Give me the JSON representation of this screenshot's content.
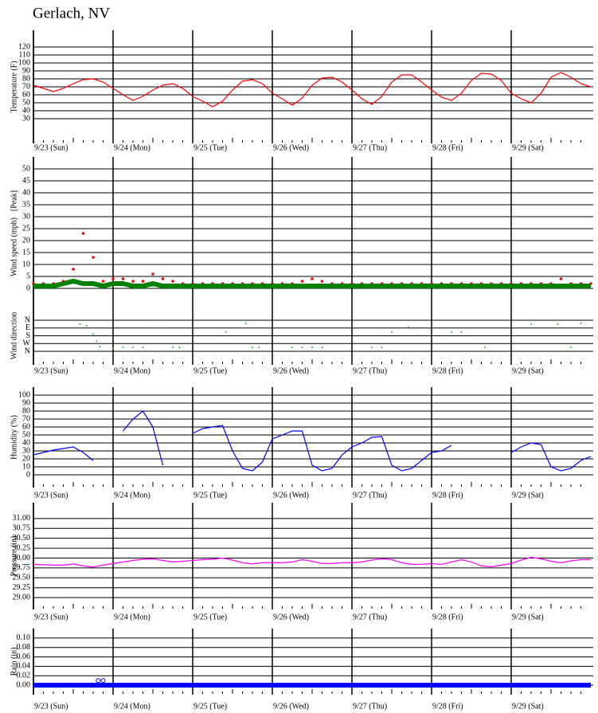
{
  "title": "Gerlach, NV",
  "chart_data": [
    {
      "type": "line",
      "y_label": "Temperature (F)",
      "xlim": [
        0,
        168
      ],
      "ylim": [
        0,
        140
      ],
      "yticks": [
        30,
        40,
        50,
        60,
        70,
        80,
        90,
        100,
        110,
        120
      ],
      "xticks": [
        {
          "value": 0,
          "label": "9/23 (Sun)"
        },
        {
          "value": 24,
          "label": "9/24 (Mon)"
        },
        {
          "value": 48,
          "label": "9/25 (Tue)"
        },
        {
          "value": 72,
          "label": "9/26 (Wed)"
        },
        {
          "value": 96,
          "label": "9/27 (Thu)"
        },
        {
          "value": 120,
          "label": "9/28 (Fri)"
        },
        {
          "value": 144,
          "label": "9/29 (Sat)"
        }
      ],
      "x": [
        0,
        3,
        6,
        9,
        12,
        15,
        18,
        21,
        24,
        27,
        30,
        33,
        36,
        39,
        42,
        45,
        48,
        51,
        54,
        57,
        60,
        63,
        66,
        69,
        72,
        75,
        78,
        81,
        84,
        87,
        90,
        93,
        96,
        99,
        102,
        105,
        108,
        111,
        114,
        117,
        120,
        123,
        126,
        129,
        132,
        135,
        138,
        141,
        144,
        147,
        150,
        153,
        156,
        159,
        162,
        165,
        168
      ],
      "series": [
        {
          "color": "#ff0000",
          "values": [
            72,
            68,
            64,
            68,
            74,
            79,
            80,
            76,
            68,
            60,
            53,
            58,
            66,
            72,
            74,
            68,
            58,
            52,
            45,
            52,
            66,
            77,
            79,
            74,
            62,
            55,
            47,
            56,
            72,
            81,
            82,
            76,
            66,
            55,
            48,
            58,
            76,
            85,
            85,
            76,
            66,
            57,
            53,
            62,
            78,
            87,
            86,
            78,
            62,
            55,
            50,
            62,
            82,
            88,
            82,
            74,
            70
          ]
        }
      ]
    },
    {
      "type": "scatter",
      "y_label": "Wind speed (mph)",
      "xlim": [
        0,
        168
      ],
      "ylim": [
        0,
        55
      ],
      "yticks": [
        0,
        5,
        10,
        15,
        20,
        25,
        30,
        35,
        40,
        45,
        50
      ],
      "xticks": [
        {
          "value": 0,
          "label": "9/23 (Sun)"
        },
        {
          "value": 24,
          "label": "9/24 (Mon)"
        },
        {
          "value": 48,
          "label": "9/25 (Tue)"
        },
        {
          "value": 72,
          "label": "9/26 (Wed)"
        },
        {
          "value": 96,
          "label": "9/27 (Thu)"
        },
        {
          "value": 120,
          "label": "9/28 (Fri)"
        },
        {
          "value": 144,
          "label": "9/29 (Sat)"
        }
      ],
      "x": [
        0,
        3,
        6,
        9,
        12,
        15,
        18,
        21,
        24,
        27,
        30,
        33,
        36,
        39,
        42,
        45,
        48,
        51,
        54,
        57,
        60,
        63,
        66,
        69,
        72,
        75,
        78,
        81,
        84,
        87,
        90,
        93,
        96,
        99,
        102,
        105,
        108,
        111,
        114,
        117,
        120,
        123,
        126,
        129,
        132,
        135,
        138,
        141,
        144,
        147,
        150,
        153,
        156,
        159,
        162,
        165,
        168
      ],
      "series": [
        {
          "name": "[Peak]",
          "color": "#ff0000",
          "values": [
            2,
            2,
            2,
            3,
            8,
            23,
            13,
            3,
            4,
            4,
            3,
            3,
            6,
            4,
            3,
            2,
            2,
            2,
            2,
            2,
            2,
            2,
            2,
            2,
            2,
            2,
            2,
            3,
            4,
            3,
            2,
            2,
            2,
            2,
            2,
            2,
            2,
            2,
            2,
            2,
            2,
            2,
            2,
            2,
            2,
            2,
            2,
            2,
            2,
            2,
            2,
            2,
            2,
            4,
            2,
            2,
            2
          ]
        },
        {
          "color": "#008000",
          "style": "band",
          "values": [
            1,
            1,
            1,
            2,
            3,
            2,
            2,
            1,
            2,
            2,
            1,
            1,
            2,
            1,
            1,
            1,
            1,
            1,
            1,
            1,
            1,
            1,
            1,
            1,
            1,
            1,
            1,
            1,
            1,
            1,
            1,
            1,
            1,
            1,
            1,
            1,
            1,
            1,
            1,
            1,
            1,
            1,
            1,
            1,
            1,
            1,
            1,
            1,
            1,
            1,
            1,
            1,
            1,
            1,
            1,
            1,
            1
          ]
        }
      ],
      "direction": {
        "y_label": "Wind direction",
        "ylim": [
          0,
          4
        ],
        "color": "#33aa33",
        "yticks": [
          {
            "value": 4,
            "label": "N"
          },
          {
            "value": 3,
            "label": "E"
          },
          {
            "value": 2,
            "label": "S"
          },
          {
            "value": 1,
            "label": "W"
          },
          {
            "value": 0,
            "label": "N"
          }
        ],
        "x": [
          14,
          16,
          18,
          19,
          20,
          24,
          27,
          30,
          33,
          36,
          39,
          42,
          44,
          58,
          63,
          64,
          66,
          68,
          78,
          81,
          84,
          87,
          102,
          105,
          108,
          113,
          126,
          129,
          136,
          150,
          158,
          162,
          165
        ],
        "values": [
          3.5,
          3.3,
          2.2,
          1.3,
          0.6,
          0.4,
          0.5,
          0.5,
          0.5,
          4,
          4,
          0.5,
          0.5,
          2.5,
          4,
          3.6,
          0.5,
          0.5,
          0.5,
          0.5,
          0.5,
          0.5,
          0.5,
          0.5,
          2.5,
          3.1,
          2.5,
          2.5,
          0.5,
          3.5,
          3.5,
          0.5,
          3.6
        ]
      }
    },
    {
      "type": "line",
      "y_label": "Humidity (%)",
      "xlim": [
        0,
        168
      ],
      "ylim": [
        -15,
        110
      ],
      "yticks": [
        0,
        10,
        20,
        30,
        40,
        50,
        60,
        70,
        80,
        90,
        100
      ],
      "xticks": [
        {
          "value": 0,
          "label": "9/23 (Sun)"
        },
        {
          "value": 24,
          "label": "9/24 (Mon)"
        },
        {
          "value": 48,
          "label": "9/25 (Tue)"
        },
        {
          "value": 72,
          "label": "9/26 (Wed)"
        },
        {
          "value": 96,
          "label": "9/27 (Thu)"
        },
        {
          "value": 120,
          "label": "9/28 (Fri)"
        },
        {
          "value": 144,
          "label": "9/29 (Sat)"
        }
      ],
      "x": [
        0,
        3,
        6,
        9,
        12,
        15,
        18,
        21,
        24,
        27,
        30,
        33,
        36,
        39,
        42,
        45,
        48,
        51,
        54,
        57,
        60,
        63,
        66,
        69,
        72,
        75,
        78,
        81,
        84,
        87,
        90,
        93,
        96,
        99,
        102,
        105,
        108,
        111,
        114,
        117,
        120,
        123,
        126,
        129,
        132,
        135,
        138,
        141,
        144,
        147,
        150,
        153,
        156,
        159,
        162,
        165,
        168
      ],
      "series": [
        {
          "color": "#0000ff",
          "values": [
            25,
            28,
            31,
            33,
            35,
            28,
            18,
            null,
            null,
            55,
            70,
            80,
            60,
            12,
            null,
            null,
            52,
            58,
            60,
            62,
            30,
            8,
            5,
            16,
            45,
            50,
            55,
            55,
            12,
            5,
            8,
            25,
            35,
            40,
            47,
            48,
            12,
            5,
            8,
            18,
            28,
            30,
            37,
            null,
            null,
            null,
            null,
            null,
            28,
            35,
            40,
            38,
            10,
            5,
            8,
            18,
            23
          ]
        }
      ]
    },
    {
      "type": "line",
      "y_label": "Pressure (in)",
      "xlim": [
        0,
        168
      ],
      "ylim": [
        28.7,
        31.4
      ],
      "yticks": [
        {
          "value": 29,
          "label": "29.00"
        },
        {
          "value": 29.25,
          "label": "29.25"
        },
        {
          "value": 29.5,
          "label": "29.50"
        },
        {
          "value": 29.75,
          "label": "29.75"
        },
        {
          "value": 30,
          "label": "30.00"
        },
        {
          "value": 30.25,
          "label": "30.25"
        },
        {
          "value": 30.5,
          "label": "30.50"
        },
        {
          "value": 30.75,
          "label": "30.75"
        },
        {
          "value": 31,
          "label": "31.00"
        }
      ],
      "xticks": [
        {
          "value": 0,
          "label": "9/23 (Sun)"
        },
        {
          "value": 24,
          "label": "9/24 (Mon)"
        },
        {
          "value": 48,
          "label": "9/25 (Tue)"
        },
        {
          "value": 72,
          "label": "9/26 (Wed)"
        },
        {
          "value": 96,
          "label": "9/27 (Thu)"
        },
        {
          "value": 120,
          "label": "9/28 (Fri)"
        },
        {
          "value": 144,
          "label": "9/29 (Sat)"
        }
      ],
      "x": [
        0,
        3,
        6,
        9,
        12,
        15,
        18,
        21,
        24,
        27,
        30,
        33,
        36,
        39,
        42,
        45,
        48,
        51,
        54,
        57,
        60,
        63,
        66,
        69,
        72,
        75,
        78,
        81,
        84,
        87,
        90,
        93,
        96,
        99,
        102,
        105,
        108,
        111,
        114,
        117,
        120,
        123,
        126,
        129,
        132,
        135,
        138,
        141,
        144,
        147,
        150,
        153,
        156,
        159,
        162,
        165,
        168
      ],
      "series": [
        {
          "color": "#ff00ff",
          "values": [
            29.84,
            29.83,
            29.82,
            29.82,
            29.85,
            29.8,
            29.77,
            29.82,
            29.86,
            29.9,
            29.94,
            29.97,
            29.98,
            29.94,
            29.9,
            29.92,
            29.94,
            29.96,
            29.97,
            30.0,
            29.95,
            29.88,
            29.85,
            29.88,
            29.88,
            29.88,
            29.9,
            29.96,
            29.92,
            29.86,
            29.86,
            29.88,
            29.88,
            29.9,
            29.95,
            29.98,
            29.96,
            29.88,
            29.84,
            29.84,
            29.86,
            29.84,
            29.9,
            29.96,
            29.9,
            29.8,
            29.78,
            29.82,
            29.86,
            29.95,
            30.02,
            29.98,
            29.92,
            29.88,
            29.93,
            29.96,
            29.96
          ]
        }
      ]
    },
    {
      "type": "scatter",
      "y_label": "Rain (in)",
      "xlim": [
        0,
        168
      ],
      "ylim": [
        -0.02,
        0.12
      ],
      "yticks": [
        {
          "value": 0,
          "label": "0.00"
        },
        {
          "value": 0.02,
          "label": "0.02"
        },
        {
          "value": 0.04,
          "label": "0.04"
        },
        {
          "value": 0.06,
          "label": "0.06"
        },
        {
          "value": 0.08,
          "label": "0.08"
        },
        {
          "value": 0.1,
          "label": "0.10"
        }
      ],
      "xticks": [
        {
          "value": 0,
          "label": "9/23 (Sun)"
        },
        {
          "value": 24,
          "label": "9/24 (Mon)"
        },
        {
          "value": 48,
          "label": "9/25 (Tue)"
        },
        {
          "value": 72,
          "label": "9/26 (Wed)"
        },
        {
          "value": 96,
          "label": "9/27 (Thu)"
        },
        {
          "value": 120,
          "label": "9/28 (Fri)"
        },
        {
          "value": 144,
          "label": "9/29 (Sat)"
        }
      ],
      "x": [
        0,
        3,
        6,
        9,
        12,
        15,
        18,
        21,
        24,
        27,
        30,
        33,
        36,
        39,
        42,
        45,
        48,
        51,
        54,
        57,
        60,
        63,
        66,
        69,
        72,
        75,
        78,
        81,
        84,
        87,
        90,
        93,
        96,
        99,
        102,
        105,
        108,
        111,
        114,
        117,
        120,
        123,
        126,
        129,
        132,
        135,
        138,
        141,
        144,
        147,
        150,
        153,
        156,
        159,
        162,
        165,
        168
      ],
      "series": [
        {
          "color": "#0000ff",
          "style": "band",
          "values": [
            0,
            0,
            0,
            0,
            0,
            0,
            0,
            0,
            0,
            0,
            0,
            0,
            0,
            0,
            0,
            0,
            0,
            0,
            0,
            0,
            0,
            0,
            0,
            0,
            0,
            0,
            0,
            0,
            0,
            0,
            0,
            0,
            0,
            0,
            0,
            0,
            0,
            0,
            0,
            0,
            0,
            0,
            0,
            0,
            0,
            0,
            0,
            0,
            0,
            0,
            0,
            0,
            0,
            0,
            0,
            0,
            0
          ]
        },
        {
          "color": "#0000ff",
          "marker": "open",
          "x": [
            19.5,
            21
          ],
          "values": [
            0.01,
            0.01
          ]
        }
      ]
    }
  ]
}
